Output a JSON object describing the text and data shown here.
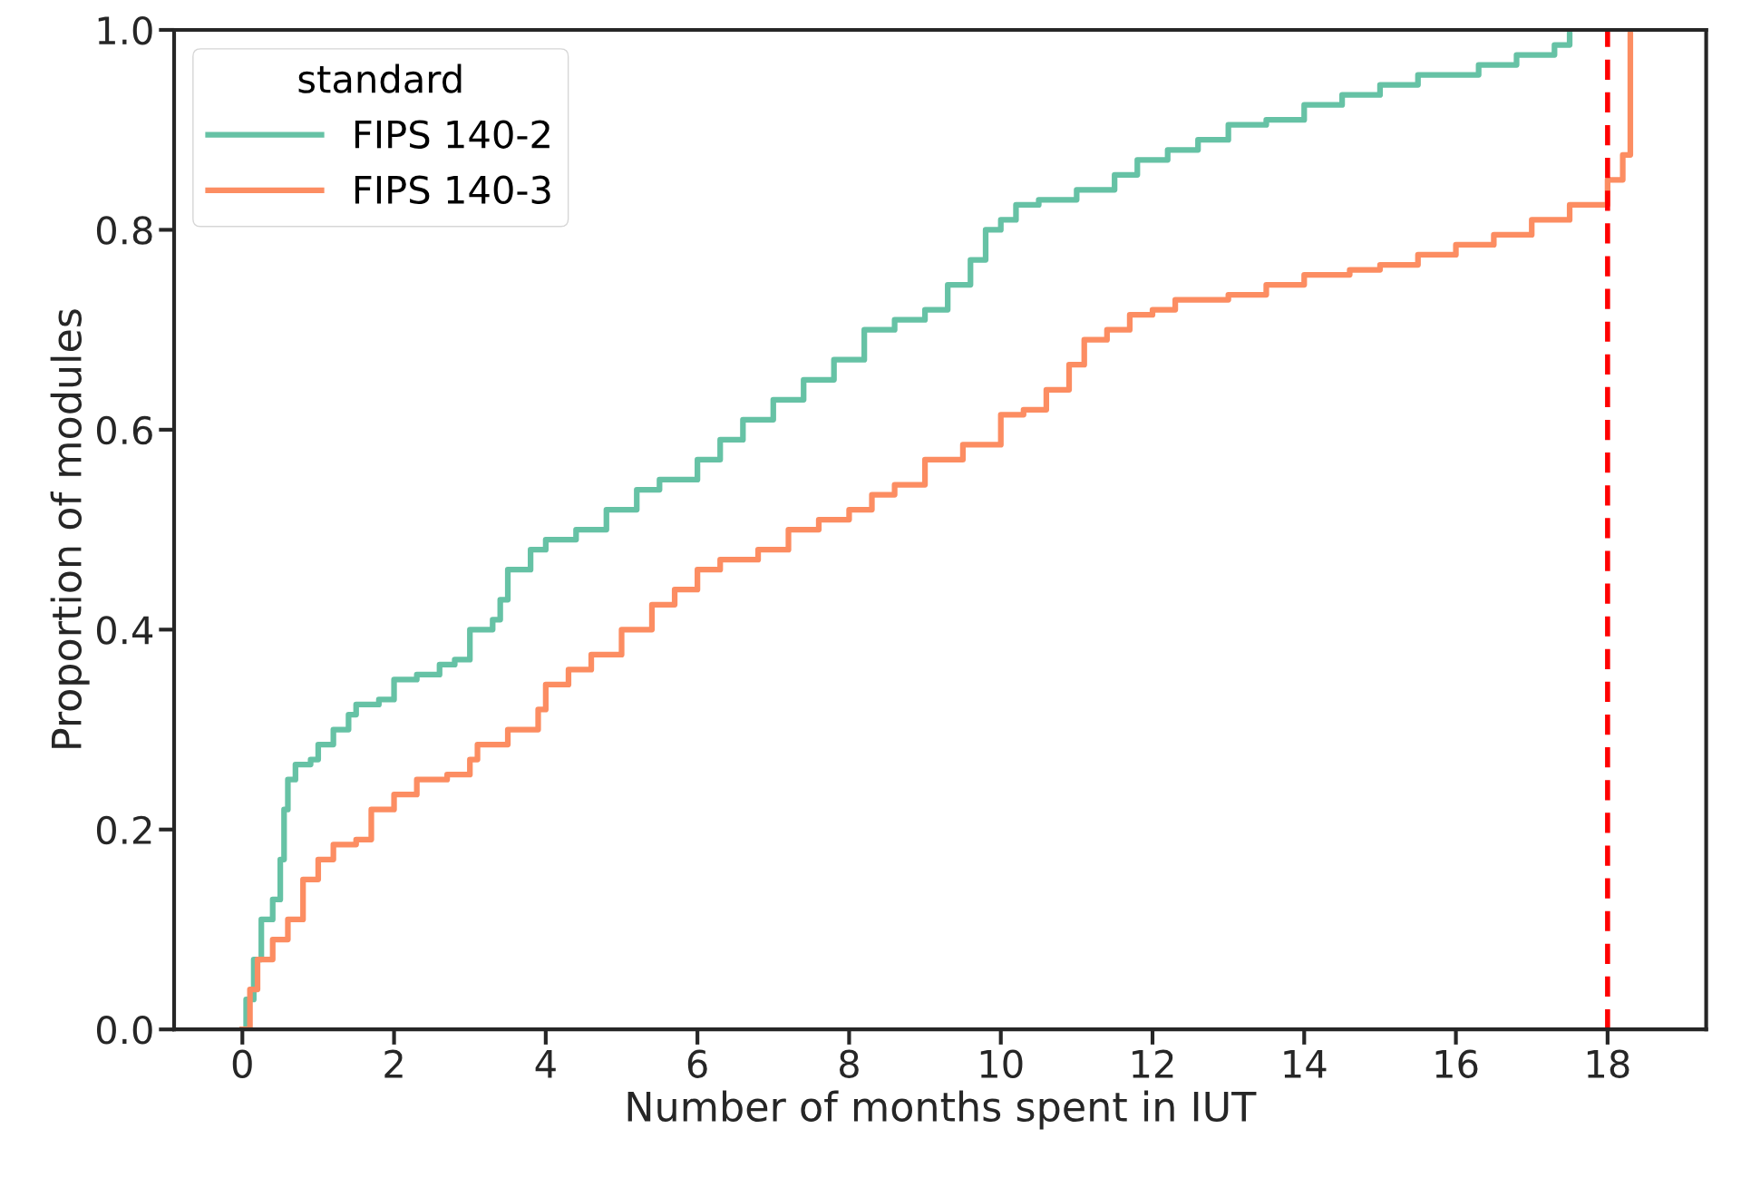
{
  "chart_data": {
    "type": "step",
    "xlabel": "Number of months spent in IUT",
    "ylabel": "Proportion of modules",
    "legend_title": "standard",
    "legend": "top left",
    "grid": false,
    "xlim": [
      -0.9,
      19.3
    ],
    "xticks": [
      0,
      2,
      4,
      6,
      8,
      10,
      12,
      14,
      16,
      18
    ],
    "ylim": [
      0.0,
      1.0
    ],
    "yticks": [
      {
        "value": 0,
        "label": "0.0"
      },
      0.2,
      0.4,
      0.6,
      0.8,
      {
        "value": 1,
        "label": "1.0"
      }
    ],
    "ref_lines": [
      {
        "axis": "x",
        "value": 18,
        "color": "#ff0000",
        "line_style": "dashed"
      }
    ],
    "series": [
      {
        "name": "FIPS 140-2",
        "color": "#66c2a5",
        "x": [
          0,
          0.05,
          0.15,
          0.25,
          0.4,
          0.5,
          0.55,
          0.6,
          0.7,
          0.9,
          1.0,
          1.2,
          1.4,
          1.5,
          1.8,
          2.0,
          2.3,
          2.6,
          2.8,
          3.0,
          3.3,
          3.4,
          3.5,
          3.8,
          4.0,
          4.4,
          4.8,
          5.2,
          5.5,
          6.0,
          6.3,
          6.6,
          7.0,
          7.4,
          7.8,
          8.2,
          8.6,
          9.0,
          9.3,
          9.6,
          9.8,
          10.0,
          10.2,
          10.5,
          11.0,
          11.5,
          11.8,
          12.2,
          12.6,
          13.0,
          13.5,
          14.0,
          14.5,
          15.0,
          15.5,
          16.3,
          16.8,
          17.3,
          17.5
        ],
        "values": [
          0,
          0.03,
          0.07,
          0.11,
          0.13,
          0.17,
          0.22,
          0.25,
          0.265,
          0.27,
          0.285,
          0.3,
          0.315,
          0.325,
          0.33,
          0.35,
          0.355,
          0.365,
          0.37,
          0.4,
          0.41,
          0.43,
          0.46,
          0.48,
          0.49,
          0.5,
          0.52,
          0.54,
          0.55,
          0.57,
          0.59,
          0.61,
          0.63,
          0.65,
          0.67,
          0.7,
          0.71,
          0.72,
          0.745,
          0.77,
          0.8,
          0.81,
          0.825,
          0.83,
          0.84,
          0.855,
          0.87,
          0.88,
          0.89,
          0.905,
          0.91,
          0.925,
          0.935,
          0.945,
          0.955,
          0.965,
          0.975,
          0.985,
          1.0
        ]
      },
      {
        "name": "FIPS 140-3",
        "color": "#fc8d62",
        "x": [
          0,
          0.1,
          0.2,
          0.4,
          0.6,
          0.8,
          1.0,
          1.2,
          1.5,
          1.7,
          2.0,
          2.3,
          2.7,
          3.0,
          3.1,
          3.5,
          3.9,
          4.0,
          4.3,
          4.6,
          5.0,
          5.4,
          5.7,
          6.0,
          6.3,
          6.8,
          7.2,
          7.6,
          8.0,
          8.3,
          8.6,
          9.0,
          9.5,
          10.0,
          10.3,
          10.6,
          10.9,
          11.1,
          11.4,
          11.7,
          12.0,
          12.3,
          13.0,
          13.5,
          14.0,
          14.6,
          15.0,
          15.5,
          16.0,
          16.5,
          17.0,
          17.5,
          18.0,
          18.2,
          18.3
        ],
        "values": [
          0,
          0.04,
          0.07,
          0.09,
          0.11,
          0.15,
          0.17,
          0.185,
          0.19,
          0.22,
          0.235,
          0.25,
          0.255,
          0.27,
          0.285,
          0.3,
          0.32,
          0.345,
          0.36,
          0.375,
          0.4,
          0.425,
          0.44,
          0.46,
          0.47,
          0.48,
          0.5,
          0.51,
          0.52,
          0.535,
          0.545,
          0.57,
          0.585,
          0.615,
          0.62,
          0.64,
          0.665,
          0.69,
          0.7,
          0.715,
          0.72,
          0.73,
          0.735,
          0.745,
          0.755,
          0.76,
          0.765,
          0.775,
          0.785,
          0.795,
          0.81,
          0.825,
          0.85,
          0.875,
          1.0
        ]
      }
    ]
  }
}
